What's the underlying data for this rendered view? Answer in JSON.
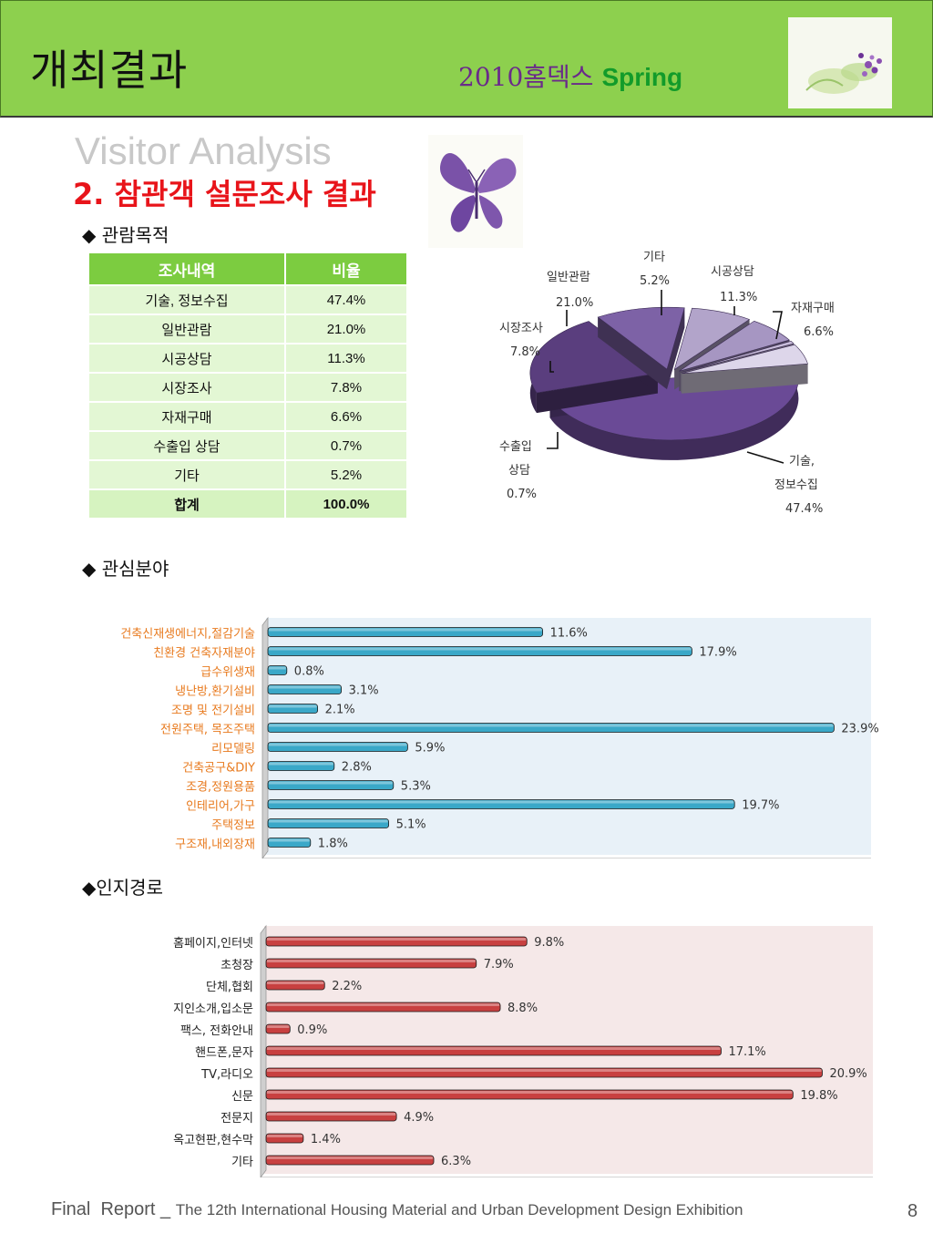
{
  "header": {
    "title": "개최결과",
    "sub_year": "2010홈덱스",
    "sub_season": "Spring"
  },
  "visitor_title": "Visitor Analysis",
  "section_title": "2. 참관객 설문조사 결과",
  "purpose": {
    "heading": "◆ 관람목적",
    "table": {
      "headers": [
        "조사내역",
        "비율"
      ],
      "rows": [
        [
          "기술, 정보수집",
          "47.4%"
        ],
        [
          "일반관람",
          "21.0%"
        ],
        [
          "시공상담",
          "11.3%"
        ],
        [
          "시장조사",
          "7.8%"
        ],
        [
          "자재구매",
          "6.6%"
        ],
        [
          "수출입 상담",
          "0.7%"
        ],
        [
          "기타",
          "5.2%"
        ]
      ],
      "total": [
        "합계",
        "100.0%"
      ]
    }
  },
  "interest_heading": "◆ 관심분야",
  "route_heading": "◆인지경로",
  "chart_data": [
    {
      "type": "pie",
      "categories": [
        "기술, 정보수집",
        "일반관람",
        "시공상담",
        "시장조사",
        "자재구매",
        "수출입 상담",
        "기타"
      ],
      "values": [
        47.4,
        21.0,
        11.3,
        7.8,
        6.6,
        0.7,
        5.2
      ],
      "labels": {
        "기타": [
          "기타",
          "5.2%"
        ],
        "시공상담": [
          "시공상담",
          "11.3%"
        ],
        "자재구매": [
          "자재구매",
          "6.6%"
        ],
        "일반관람": [
          "일반관람",
          "21.0%"
        ],
        "시장조사": [
          "시장조사",
          "7.8%"
        ],
        "수출입": [
          "수출입",
          "상담",
          "0.7%"
        ],
        "기술": [
          "기술,",
          "정보수집",
          "47.4%"
        ]
      },
      "colors": [
        "#6a4a96",
        "#5a3e7e",
        "#7d62a6",
        "#b2a4ca",
        "#a696c2",
        "#c9bedb",
        "#ddd6ea"
      ]
    },
    {
      "type": "bar",
      "orientation": "horizontal",
      "categories": [
        "건축신재생에너지,절감기술",
        "친환경 건축자재분야",
        "급수위생재",
        "냉난방,환기설비",
        "조명 및 전기설비",
        "전원주택, 목조주택",
        "리모델링",
        "건축공구&DIY",
        "조경,정원용품",
        "인테리어,가구",
        "주택정보",
        "구조재,내외장재"
      ],
      "values": [
        11.6,
        17.9,
        0.8,
        3.1,
        2.1,
        23.9,
        5.9,
        2.8,
        5.3,
        19.7,
        5.1,
        1.8
      ],
      "data_labels": [
        "11.6%",
        "17.9%",
        "0.8%",
        "3.1%",
        "2.1%",
        "23.9%",
        "5.9%",
        "2.8%",
        "5.3%",
        "19.7%",
        "5.1%",
        "1.8%"
      ],
      "xlim": [
        0,
        24
      ],
      "bar_color": "#3aa8c8",
      "label_color": "#e87a1e",
      "background": "#e8f1f8"
    },
    {
      "type": "bar",
      "orientation": "horizontal",
      "categories": [
        "홈페이지,인터넷",
        "초청장",
        "단체,협회",
        "지인소개,입소문",
        "팩스, 전화안내",
        "핸드폰,문자",
        "TV,라디오",
        "신문",
        "전문지",
        "옥고현판,현수막",
        "기타"
      ],
      "values": [
        9.8,
        7.9,
        2.2,
        8.8,
        0.9,
        17.1,
        20.9,
        19.8,
        4.9,
        1.4,
        6.3
      ],
      "data_labels": [
        "9.8%",
        "7.9%",
        "2.2%",
        "8.8%",
        "0.9%",
        "17.1%",
        "20.9%",
        "19.8%",
        "4.9%",
        "1.4%",
        "6.3%"
      ],
      "xlim": [
        0,
        21.5
      ],
      "bar_color": "#c84040",
      "label_color": "#222222",
      "background": "#f5e8e8"
    }
  ],
  "footer": {
    "part1": "Final  Report _",
    "part2": "The 12th International Housing Material and Urban Development Design Exhibition",
    "page": "8"
  }
}
